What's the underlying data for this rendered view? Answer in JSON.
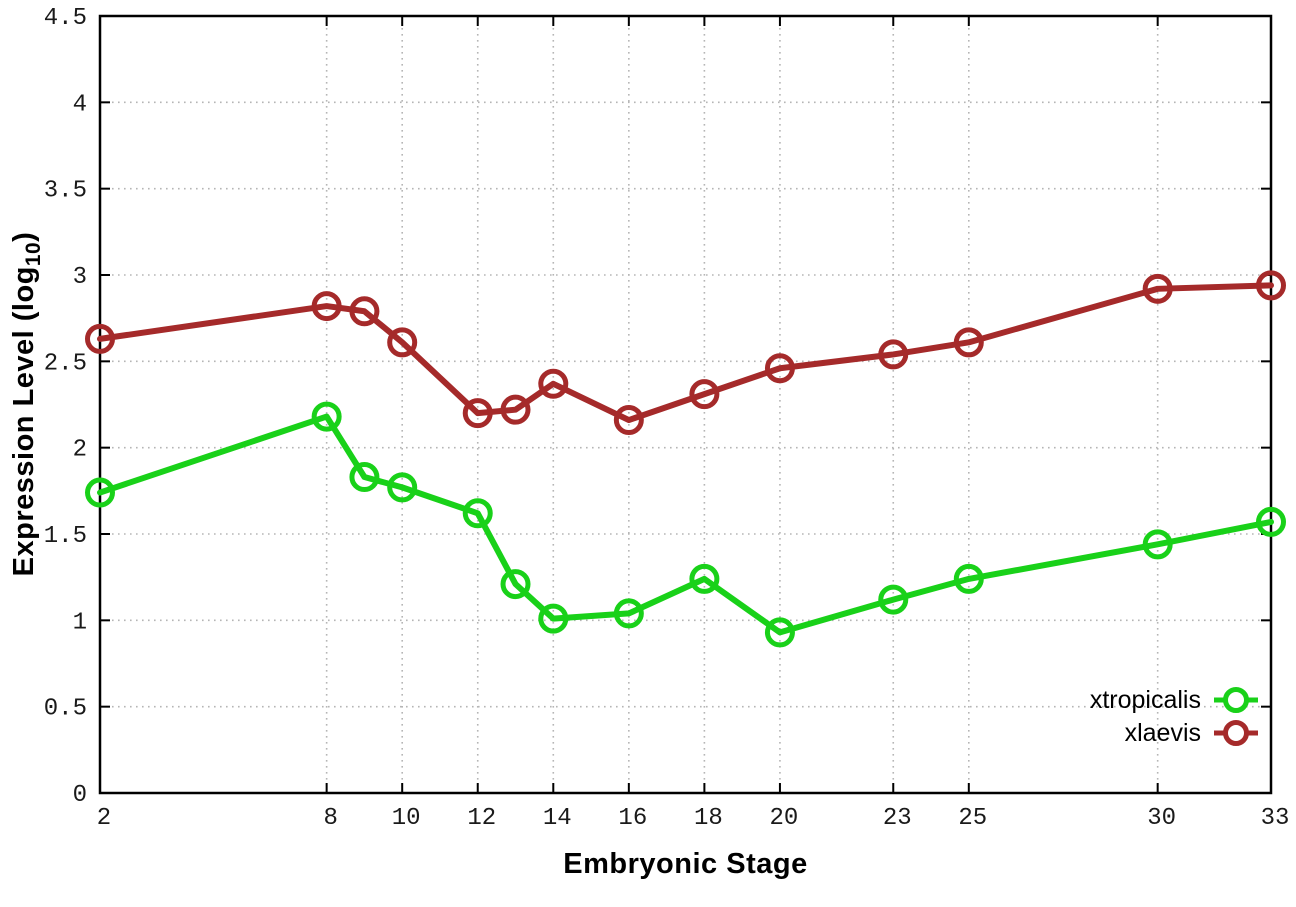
{
  "figure": {
    "background": "#ffffff"
  },
  "chart_data": {
    "type": "line",
    "title": "",
    "xlabel": "Embryonic Stage",
    "ylabel": "Expression Level (log10)",
    "ylabel_parts": {
      "prefix": "Expression Level (log",
      "subscript": "10",
      "suffix": ")"
    },
    "x": [
      2,
      8,
      9,
      10,
      12,
      13,
      14,
      16,
      18,
      20,
      23,
      25,
      30,
      33
    ],
    "series": [
      {
        "name": "xtropicalis",
        "color": "#19d119",
        "values": [
          1.74,
          2.18,
          1.83,
          1.77,
          1.62,
          1.21,
          1.01,
          1.04,
          1.24,
          0.93,
          1.12,
          1.24,
          1.44,
          1.57
        ]
      },
      {
        "name": "xlaevis",
        "color": "#a52a2a",
        "values": [
          2.63,
          2.82,
          2.79,
          2.61,
          2.2,
          2.22,
          2.37,
          2.16,
          2.31,
          2.46,
          2.54,
          2.61,
          2.92,
          2.94
        ]
      }
    ],
    "xticks": [
      2,
      8,
      10,
      12,
      14,
      16,
      18,
      20,
      23,
      25,
      30,
      33
    ],
    "yticks": [
      0,
      0.5,
      1,
      1.5,
      2,
      2.5,
      3,
      3.5,
      4,
      4.5
    ],
    "xlim": [
      2,
      33
    ],
    "ylim": [
      0,
      4.5
    ],
    "grid": true,
    "legend_position": "inside-bottom-right",
    "axis_color": "#000000",
    "grid_color": "#b5b5b5",
    "tick_label_color": "#1a1a1a"
  }
}
